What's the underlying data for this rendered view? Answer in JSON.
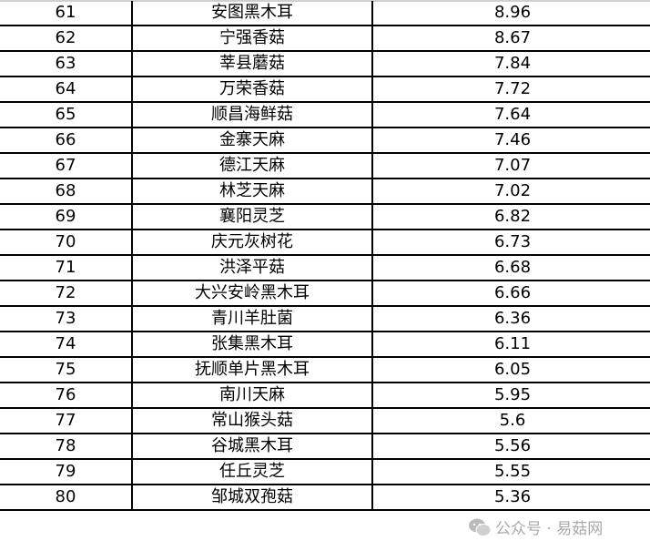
{
  "rows": [
    {
      "rank": "61",
      "name": "安图黑木耳",
      "value": "8.96"
    },
    {
      "rank": "62",
      "name": "宁强香菇",
      "value": "8.67"
    },
    {
      "rank": "63",
      "name": "莘县蘑菇",
      "value": "7.84"
    },
    {
      "rank": "64",
      "name": "万荣香菇",
      "value": "7.72"
    },
    {
      "rank": "65",
      "name": "顺昌海鲜菇",
      "value": "7.64"
    },
    {
      "rank": "66",
      "name": "金寨天麻",
      "value": "7.46"
    },
    {
      "rank": "67",
      "name": "德江天麻",
      "value": "7.07"
    },
    {
      "rank": "68",
      "name": "林芝天麻",
      "value": "7.02"
    },
    {
      "rank": "69",
      "name": "襄阳灵芝",
      "value": "6.82"
    },
    {
      "rank": "70",
      "name": "庆元灰树花",
      "value": "6.73"
    },
    {
      "rank": "71",
      "name": "洪泽平菇",
      "value": "6.68"
    },
    {
      "rank": "72",
      "name": "大兴安岭黑木耳",
      "value": "6.66"
    },
    {
      "rank": "73",
      "name": "青川羊肚菌",
      "value": "6.36"
    },
    {
      "rank": "74",
      "name": "张集黑木耳",
      "value": "6.11"
    },
    {
      "rank": "75",
      "name": "抚顺单片黑木耳",
      "value": "6.05"
    },
    {
      "rank": "76",
      "name": "南川天麻",
      "value": "5.95"
    },
    {
      "rank": "77",
      "name": "常山猴头菇",
      "value": "5.6"
    },
    {
      "rank": "78",
      "name": "谷城黑木耳",
      "value": "5.56"
    },
    {
      "rank": "79",
      "name": "任丘灵芝",
      "value": "5.55"
    },
    {
      "rank": "80",
      "name": "邹城双孢菇",
      "value": "5.36"
    }
  ],
  "watermark": {
    "icon": "wechat-icon",
    "text": "公众号 · 易菇网"
  }
}
